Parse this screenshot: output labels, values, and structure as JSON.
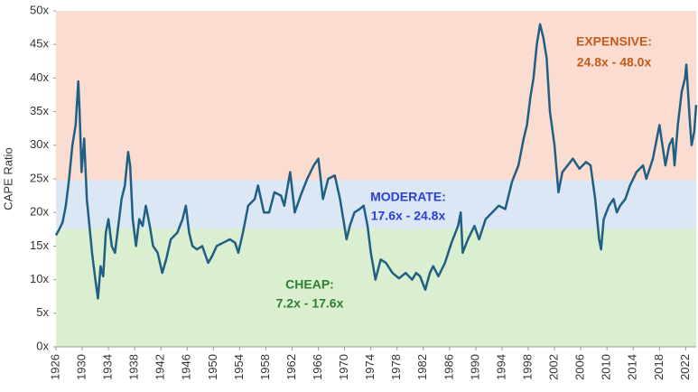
{
  "chart_data": {
    "type": "line",
    "y_label": "CAPE Ratio",
    "xlim": [
      1926,
      2023.6
    ],
    "xticks": [
      1926,
      1930,
      1934,
      1938,
      1942,
      1946,
      1950,
      1954,
      1958,
      1962,
      1966,
      1970,
      1974,
      1978,
      1982,
      1986,
      1990,
      1994,
      1998,
      2002,
      2006,
      2010,
      2014,
      2018,
      2022
    ],
    "ylim": [
      0,
      50
    ],
    "yticks": [
      {
        "value": 0,
        "label": "0x"
      },
      {
        "value": 5,
        "label": "5x"
      },
      {
        "value": 10,
        "label": "10x"
      },
      {
        "value": 15,
        "label": "15x"
      },
      {
        "value": 20,
        "label": "20x"
      },
      {
        "value": 25,
        "label": "25x"
      },
      {
        "value": 30,
        "label": "30x"
      },
      {
        "value": 35,
        "label": "35x"
      },
      {
        "value": 40,
        "label": "40x"
      },
      {
        "value": 45,
        "label": "45x"
      },
      {
        "value": 50,
        "label": "50x"
      }
    ],
    "bands": [
      {
        "label": "CHEAP:",
        "range_label": "7.2x - 17.6x",
        "to": 17.6,
        "color": "#d9efd0",
        "text_color": "#2e7d32"
      },
      {
        "label": "MODERATE:",
        "range_label": "17.6x - 24.8x",
        "from": 17.6,
        "to": 24.8,
        "color": "#dbe7f5",
        "text_color": "#2b3fd9"
      },
      {
        "label": "EXPENSIVE:",
        "range_label": "24.8x - 48.0x",
        "from": 24.8,
        "color": "#fbdcd0",
        "text_color": "#c55a1a"
      }
    ],
    "series": [
      {
        "color": "#1f5f84",
        "x": [
          1926.0,
          1926.5,
          1927.0,
          1927.5,
          1928.0,
          1928.5,
          1929.0,
          1929.4,
          1929.6,
          1929.9,
          1930.3,
          1930.7,
          1931.0,
          1931.5,
          1932.0,
          1932.4,
          1932.8,
          1933.2,
          1933.6,
          1934.0,
          1934.5,
          1935.0,
          1935.5,
          1936.0,
          1936.5,
          1937.0,
          1937.3,
          1937.7,
          1938.2,
          1938.7,
          1939.2,
          1939.7,
          1940.3,
          1940.8,
          1941.5,
          1942.2,
          1942.8,
          1943.5,
          1944.5,
          1945.3,
          1945.8,
          1946.3,
          1946.8,
          1947.5,
          1948.3,
          1949.2,
          1949.8,
          1950.5,
          1951.5,
          1952.5,
          1953.3,
          1953.8,
          1954.5,
          1955.3,
          1956.3,
          1956.8,
          1957.7,
          1958.5,
          1959.3,
          1960.3,
          1960.8,
          1961.7,
          1962.4,
          1963.3,
          1964.3,
          1965.3,
          1966.0,
          1966.7,
          1967.5,
          1968.5,
          1969.3,
          1970.3,
          1970.8,
          1971.5,
          1972.3,
          1972.9,
          1973.5,
          1974.0,
          1974.7,
          1975.5,
          1976.3,
          1977.3,
          1978.3,
          1979.3,
          1980.3,
          1980.9,
          1981.5,
          1982.3,
          1983.0,
          1983.5,
          1984.3,
          1985.3,
          1986.3,
          1987.3,
          1987.7,
          1988.0,
          1988.8,
          1989.8,
          1990.5,
          1991.5,
          1992.5,
          1993.5,
          1994.5,
          1995.5,
          1996.5,
          1997.3,
          1997.8,
          1998.3,
          1998.8,
          1999.3,
          1999.8,
          2000.3,
          2000.8,
          2001.3,
          2002.0,
          2002.6,
          2003.2,
          2004.0,
          2004.8,
          2005.8,
          2006.8,
          2007.5,
          2008.2,
          2008.8,
          2009.1,
          2009.5,
          2010.3,
          2011.0,
          2011.5,
          2012.0,
          2012.8,
          2013.5,
          2014.5,
          2015.5,
          2016.0,
          2017.0,
          2018.0,
          2018.9,
          2019.5,
          2020.0,
          2020.3,
          2020.8,
          2021.4,
          2021.9,
          2022.1,
          2022.6,
          2022.9,
          2023.3,
          2023.6
        ],
        "values": [
          16.6,
          17.5,
          18.5,
          21,
          25,
          30,
          33,
          39.5,
          35,
          26,
          31,
          22,
          19,
          14,
          10,
          7.2,
          12,
          10.5,
          17,
          19,
          15,
          14,
          18,
          22,
          24,
          29,
          27,
          19,
          15,
          19,
          18,
          21,
          18,
          15,
          14,
          11,
          13,
          16,
          17,
          19,
          21,
          17,
          15,
          14.5,
          15,
          12.5,
          13.5,
          15,
          15.5,
          16,
          15.5,
          14,
          17,
          21,
          22,
          24,
          20,
          20,
          23,
          22.5,
          21,
          26,
          20,
          22.5,
          25,
          27,
          28,
          22,
          25,
          25.5,
          22,
          16,
          18,
          20,
          20.5,
          21,
          18,
          14,
          10,
          13,
          12.5,
          11,
          10.2,
          11,
          10,
          11,
          10.5,
          8.5,
          11,
          12,
          10.5,
          12.5,
          15.5,
          18,
          20,
          14,
          16,
          18,
          16,
          19,
          20,
          21,
          20.5,
          24.5,
          27,
          31,
          33,
          37,
          40,
          45,
          48,
          46,
          43,
          35,
          30,
          23,
          26,
          27,
          28,
          26.5,
          27.5,
          27,
          22,
          16,
          14.5,
          19,
          21,
          22,
          20,
          21,
          22,
          24,
          26,
          27,
          25,
          28,
          33,
          27,
          30,
          31,
          27,
          33,
          38,
          40,
          42,
          34,
          30,
          32,
          36
        ]
      }
    ]
  }
}
